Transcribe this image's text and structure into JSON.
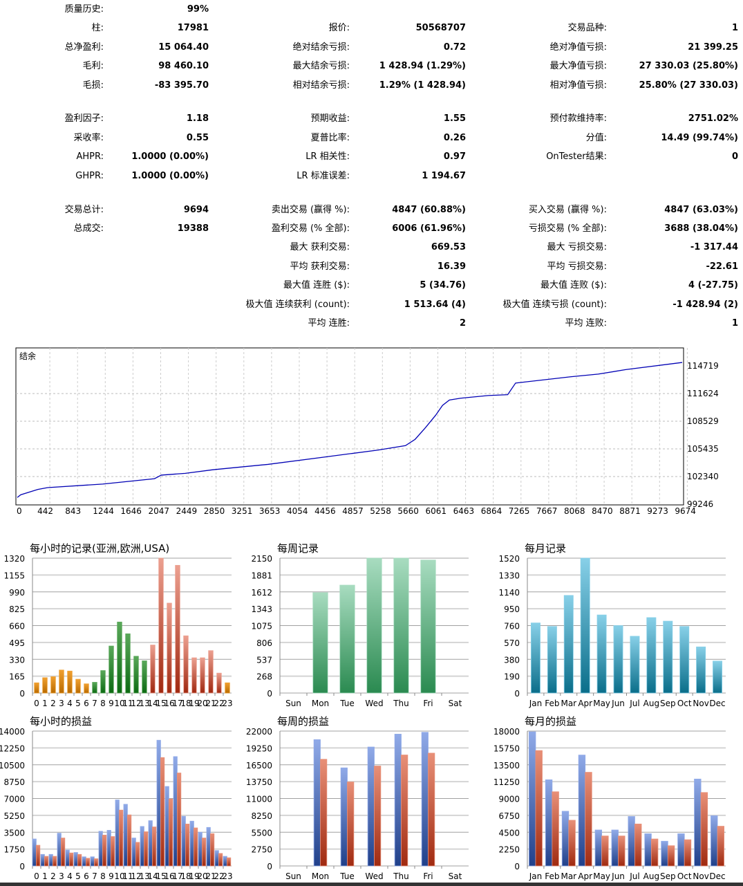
{
  "stats": [
    [
      [
        "质量历史:",
        "99%"
      ],
      null,
      null
    ],
    [
      [
        "柱:",
        "17981"
      ],
      [
        "报价:",
        "50568707"
      ],
      [
        "交易品种:",
        "1"
      ]
    ],
    [
      [
        "总净盈利:",
        "15 064.40"
      ],
      [
        "绝对结余亏损:",
        "0.72"
      ],
      [
        "绝对净值亏损:",
        "21 399.25"
      ]
    ],
    [
      [
        "毛利:",
        "98 460.10"
      ],
      [
        "最大结余亏损:",
        "1 428.94 (1.29%)"
      ],
      [
        "最大净值亏损:",
        "27 330.03 (25.80%)"
      ]
    ],
    [
      [
        "毛损:",
        "-83 395.70"
      ],
      [
        "相对结余亏损:",
        "1.29% (1 428.94)"
      ],
      [
        "相对净值亏损:",
        "25.80% (27 330.03)"
      ]
    ],
    [
      [
        "盈利因子:",
        "1.18"
      ],
      [
        "预期收益:",
        "1.55"
      ],
      [
        "预付款维持率:",
        "2751.02%"
      ]
    ],
    [
      [
        "采收率:",
        "0.55"
      ],
      [
        "夏普比率:",
        "0.26"
      ],
      [
        "分值:",
        "14.49 (99.74%)"
      ]
    ],
    [
      [
        "AHPR:",
        "1.0000 (0.00%)"
      ],
      [
        "LR 相关性:",
        "0.97"
      ],
      [
        "OnTester结果:",
        "0"
      ]
    ],
    [
      [
        "GHPR:",
        "1.0000 (0.00%)"
      ],
      [
        "LR 标准误差:",
        "1 194.67"
      ],
      null
    ],
    [
      [
        "交易总计:",
        "9694"
      ],
      [
        "卖出交易 (赢得 %):",
        "4847 (60.88%)"
      ],
      [
        "买入交易 (赢得 %):",
        "4847 (63.03%)"
      ]
    ],
    [
      [
        "总成交:",
        "19388"
      ],
      [
        "盈利交易 (% 全部):",
        "6006 (61.96%)"
      ],
      [
        "亏损交易 (% 全部):",
        "3688 (38.04%)"
      ]
    ],
    [
      null,
      [
        "最大 获利交易:",
        "669.53"
      ],
      [
        "最大 亏损交易:",
        "-1 317.44"
      ]
    ],
    [
      null,
      [
        "平均 获利交易:",
        "16.39"
      ],
      [
        "平均 亏损交易:",
        "-22.61"
      ]
    ],
    [
      null,
      [
        "最大值 连胜 ($):",
        "5 (34.76)"
      ],
      [
        "最大值 连败 ($):",
        "4 (-27.75)"
      ]
    ],
    [
      null,
      [
        "极大值 连续获利 (count):",
        "1 513.64 (4)"
      ],
      [
        "极大值 连续亏损 (count):",
        "-1 428.94 (2)"
      ]
    ],
    [
      null,
      [
        "平均 连胜:",
        "2"
      ],
      [
        "平均 连败:",
        "1"
      ]
    ]
  ],
  "chart_data": [
    {
      "type": "line",
      "title": "结余",
      "xlim": [
        0,
        9694
      ],
      "ylim": [
        99246,
        116000
      ],
      "yticks": [
        "114719",
        "111624",
        "108529",
        "105435",
        "102340",
        "99246"
      ],
      "ytick_values": [
        114719,
        111624,
        108529,
        105435,
        102340,
        99246
      ],
      "xticks": [
        "0",
        "442",
        "843",
        "1244",
        "1646",
        "2047",
        "2449",
        "2850",
        "3251",
        "3653",
        "4054",
        "4456",
        "4857",
        "5258",
        "5660",
        "6061",
        "6463",
        "6864",
        "7265",
        "7667",
        "8068",
        "8470",
        "8871",
        "9273",
        "9674"
      ],
      "x": [
        0,
        50,
        300,
        442,
        1244,
        2000,
        2100,
        2449,
        2850,
        3653,
        4456,
        5258,
        5660,
        5800,
        5950,
        6100,
        6200,
        6300,
        6463,
        6864,
        7150,
        7265,
        8068,
        8470,
        8871,
        9694
      ],
      "y": [
        100000,
        100300,
        100900,
        101100,
        101500,
        102100,
        102500,
        102700,
        103100,
        103700,
        104500,
        105300,
        105800,
        106500,
        107800,
        109200,
        110300,
        110900,
        111100,
        111400,
        111500,
        112800,
        113500,
        113800,
        114300,
        115100
      ],
      "color": "#0000b4"
    },
    {
      "type": "bar",
      "title": "每小时的记录(亚洲,欧洲,USA)",
      "ylim": [
        0,
        1320
      ],
      "yticks": [
        "1320",
        "1155",
        "990",
        "825",
        "660",
        "495",
        "330",
        "165",
        "0"
      ],
      "categories": [
        "0",
        "1",
        "2",
        "3",
        "4",
        "5",
        "6",
        "7",
        "8",
        "9",
        "10",
        "11",
        "12",
        "13",
        "14",
        "15",
        "16",
        "17",
        "18",
        "19",
        "20",
        "21",
        "22",
        "23"
      ],
      "values": [
        100,
        150,
        160,
        225,
        215,
        135,
        90,
        105,
        220,
        460,
        695,
        580,
        360,
        315,
        470,
        1320,
        880,
        1250,
        560,
        345,
        345,
        415,
        195,
        100
      ],
      "groups": [
        "asia",
        "asia",
        "asia",
        "asia",
        "asia",
        "asia",
        "asia",
        "europe",
        "europe",
        "europe",
        "europe",
        "europe",
        "europe",
        "europe",
        "usa",
        "usa",
        "usa",
        "usa",
        "usa",
        "usa",
        "usa",
        "usa",
        "usa",
        "asia"
      ]
    },
    {
      "type": "bar",
      "title": "每周记录",
      "ylim": [
        0,
        2150
      ],
      "yticks": [
        "2150",
        "1881",
        "1612",
        "1343",
        "1075",
        "806",
        "537",
        "268",
        "0"
      ],
      "categories": [
        "Sun",
        "Mon",
        "Tue",
        "Wed",
        "Thu",
        "Fri",
        "Sat"
      ],
      "values": [
        0,
        1600,
        1720,
        2150,
        2150,
        2120,
        0
      ],
      "groups": [
        "week"
      ]
    },
    {
      "type": "bar",
      "title": "每月记录",
      "ylim": [
        0,
        1520
      ],
      "yticks": [
        "1520",
        "1330",
        "1140",
        "950",
        "760",
        "570",
        "380",
        "190",
        "0"
      ],
      "categories": [
        "Jan",
        "Feb",
        "Mar",
        "Apr",
        "May",
        "Jun",
        "Jul",
        "Aug",
        "Sep",
        "Oct",
        "Nov",
        "Dec"
      ],
      "values": [
        790,
        750,
        1100,
        1520,
        880,
        760,
        640,
        850,
        810,
        750,
        520,
        360
      ],
      "groups": [
        "month"
      ]
    },
    {
      "type": "bar",
      "title": "每小时的损益",
      "ylim": [
        0,
        14000
      ],
      "yticks": [
        "14000",
        "12250",
        "10500",
        "8750",
        "7000",
        "5250",
        "3500",
        "1750",
        "0"
      ],
      "categories": [
        "0",
        "1",
        "2",
        "3",
        "4",
        "5",
        "6",
        "7",
        "8",
        "9",
        "10",
        "11",
        "12",
        "13",
        "14",
        "15",
        "16",
        "17",
        "18",
        "19",
        "20",
        "21",
        "22",
        "23"
      ],
      "series": [
        {
          "name": "profit",
          "values": [
            2800,
            1200,
            1200,
            3400,
            1650,
            1400,
            950,
            950,
            3600,
            3700,
            6850,
            6400,
            2900,
            4100,
            4700,
            13050,
            8250,
            11350,
            5150,
            4650,
            3500,
            4000,
            1600,
            1000
          ]
        },
        {
          "name": "loss",
          "values": [
            2150,
            1000,
            1000,
            2900,
            1350,
            1200,
            800,
            750,
            3200,
            3050,
            5800,
            5300,
            2450,
            3550,
            4050,
            11250,
            6950,
            9650,
            4350,
            3950,
            2900,
            3350,
            1300,
            850
          ]
        }
      ]
    },
    {
      "type": "bar",
      "title": "每周的损益",
      "ylim": [
        0,
        22000
      ],
      "yticks": [
        "22000",
        "19250",
        "16500",
        "13750",
        "11000",
        "8250",
        "5500",
        "2750",
        "0"
      ],
      "categories": [
        "Sun",
        "Mon",
        "Tue",
        "Wed",
        "Thu",
        "Fri",
        "Sat"
      ],
      "series": [
        {
          "name": "profit",
          "values": [
            0,
            20600,
            16000,
            19400,
            21500,
            21800,
            0
          ]
        },
        {
          "name": "loss",
          "values": [
            0,
            17400,
            13700,
            16300,
            18100,
            18400,
            0
          ]
        }
      ]
    },
    {
      "type": "bar",
      "title": "每月的损益",
      "ylim": [
        0,
        18000
      ],
      "yticks": [
        "18000",
        "15750",
        "13500",
        "11250",
        "9000",
        "6750",
        "4500",
        "2250",
        "0"
      ],
      "categories": [
        "Jan",
        "Feb",
        "Mar",
        "Apr",
        "May",
        "Jun",
        "Jul",
        "Aug",
        "Sep",
        "Oct",
        "Nov",
        "Dec"
      ],
      "series": [
        {
          "name": "profit",
          "values": [
            17900,
            11500,
            7300,
            14800,
            4800,
            4800,
            6600,
            4300,
            3300,
            4300,
            11600,
            6700
          ]
        },
        {
          "name": "loss",
          "values": [
            15400,
            9900,
            6100,
            12500,
            4000,
            4000,
            5600,
            3600,
            2700,
            3500,
            9800,
            5300
          ]
        }
      ]
    }
  ],
  "colors": {
    "asia": [
      "#f0a030",
      "#b86a00"
    ],
    "europe": [
      "#5aa85a",
      "#0c6a12"
    ],
    "usa": [
      "#eca090",
      "#a02810"
    ],
    "week": [
      "#a8dcc0",
      "#2a8a50"
    ],
    "month": [
      "#88d0e8",
      "#0a6e8a"
    ],
    "profit": [
      "#90aae8",
      "#20408a"
    ],
    "loss": [
      "#e89078",
      "#a02a10"
    ]
  }
}
